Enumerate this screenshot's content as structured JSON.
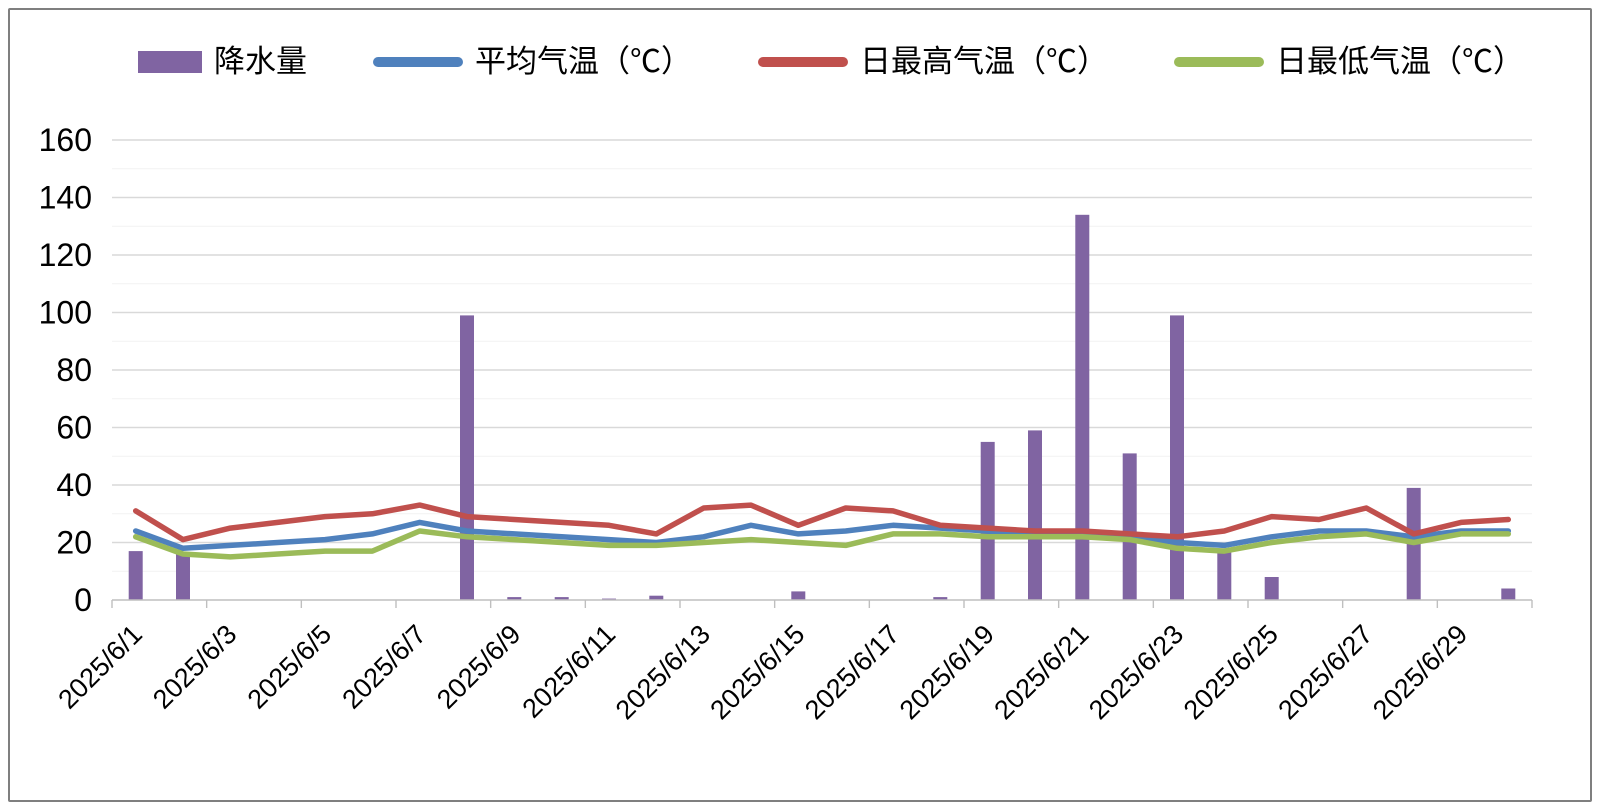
{
  "legend": {
    "items": [
      {
        "label": "降水量",
        "type": "bar",
        "color": "#8064A2"
      },
      {
        "label": "平均气温（℃）",
        "type": "line",
        "color": "#4F81BD"
      },
      {
        "label": "日最高气温（℃）",
        "type": "line",
        "color": "#C0504D"
      },
      {
        "label": "日最低气温（℃）",
        "type": "line",
        "color": "#9BBB59"
      }
    ]
  },
  "chart_data": {
    "type": "combo-bar-line",
    "title": "",
    "xlabel": "",
    "ylabel": "",
    "categories": [
      "2025/6/1",
      "2025/6/2",
      "2025/6/3",
      "2025/6/4",
      "2025/6/5",
      "2025/6/6",
      "2025/6/7",
      "2025/6/8",
      "2025/6/9",
      "2025/6/10",
      "2025/6/11",
      "2025/6/12",
      "2025/6/13",
      "2025/6/14",
      "2025/6/15",
      "2025/6/16",
      "2025/6/17",
      "2025/6/18",
      "2025/6/19",
      "2025/6/20",
      "2025/6/21",
      "2025/6/22",
      "2025/6/23",
      "2025/6/24",
      "2025/6/25",
      "2025/6/26",
      "2025/6/27",
      "2025/6/28",
      "2025/6/29",
      "2025/6/30"
    ],
    "x_tick_every": 2,
    "y_axis": {
      "min": 0,
      "max": 160,
      "step": 20,
      "minor_step": 10
    },
    "grid": {
      "major_color": "#D9D9D9",
      "minor_color": "#F2F2F2",
      "axis_color": "#BFBFBF"
    },
    "bar_series": {
      "name": "降水量",
      "color": "#8064A2",
      "values": [
        17,
        16,
        0,
        0,
        0,
        0,
        0,
        99,
        1,
        1,
        0.5,
        1.5,
        0,
        0,
        3,
        0,
        0,
        1,
        55,
        59,
        134,
        51,
        99,
        18,
        8,
        0,
        0,
        39,
        0,
        4
      ]
    },
    "line_series": [
      {
        "name": "平均气温（℃）",
        "color": "#4F81BD",
        "values": [
          24,
          18,
          19,
          20,
          21,
          23,
          27,
          24,
          23,
          22,
          21,
          20,
          22,
          26,
          23,
          24,
          26,
          25,
          24,
          23,
          23,
          22,
          20,
          19,
          22,
          24,
          24,
          22,
          24,
          24
        ]
      },
      {
        "name": "日最高气温（℃）",
        "color": "#C0504D",
        "values": [
          31,
          21,
          25,
          27,
          29,
          30,
          33,
          29,
          28,
          27,
          26,
          23,
          32,
          33,
          26,
          32,
          31,
          26,
          25,
          24,
          24,
          23,
          22,
          24,
          29,
          28,
          32,
          23,
          27,
          28
        ]
      },
      {
        "name": "日最低气温（℃）",
        "color": "#9BBB59",
        "values": [
          22,
          16,
          15,
          16,
          17,
          17,
          24,
          22,
          21,
          20,
          19,
          19,
          20,
          21,
          20,
          19,
          23,
          23,
          22,
          22,
          22,
          21,
          18,
          17,
          20,
          22,
          23,
          20,
          23,
          23
        ]
      }
    ]
  }
}
